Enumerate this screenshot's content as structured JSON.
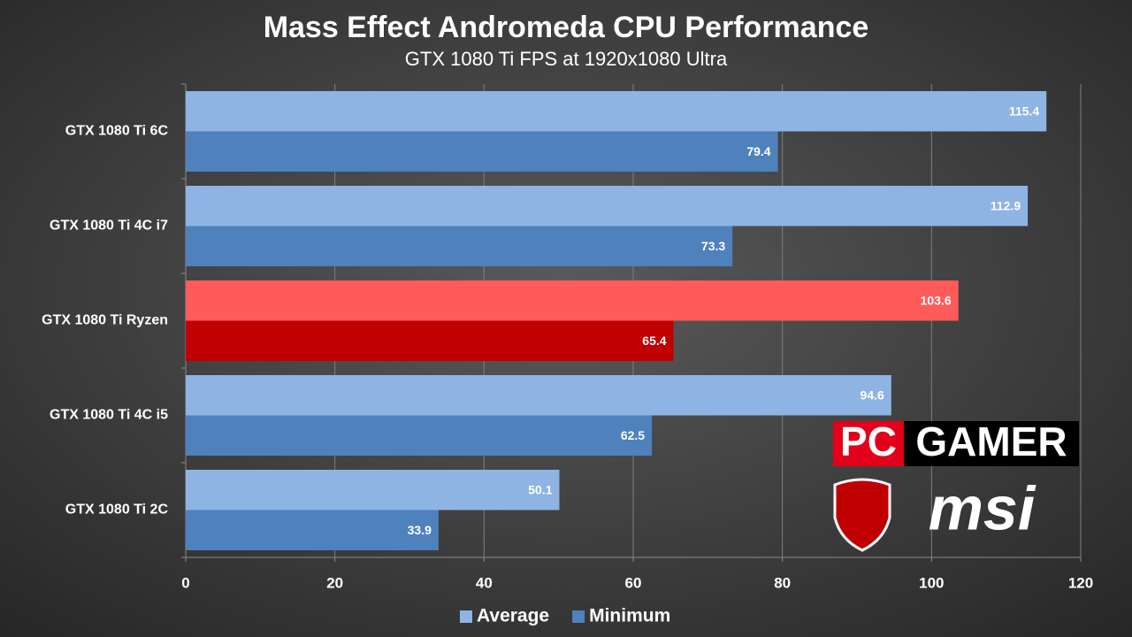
{
  "chart_data": {
    "type": "hbar",
    "title": "Mass Effect Andromeda CPU Performance",
    "subtitle": "GTX 1080 Ti FPS at 1920x1080 Ultra",
    "categories": [
      "GTX 1080 Ti 6C",
      "GTX 1080 Ti 4C i7",
      "GTX 1080 Ti Ryzen",
      "GTX 1080 Ti 4C i5",
      "GTX 1080 Ti 2C"
    ],
    "series": [
      {
        "name": "Average",
        "color": "#8eb4e3",
        "colors": [
          "#8eb4e3",
          "#8eb4e3",
          "#ff5b5b",
          "#8eb4e3",
          "#8eb4e3"
        ],
        "values": [
          115.4,
          112.9,
          103.6,
          94.6,
          50.1
        ]
      },
      {
        "name": "Minimum",
        "color": "#4f81bd",
        "colors": [
          "#4f81bd",
          "#4f81bd",
          "#c00000",
          "#4f81bd",
          "#4f81bd"
        ],
        "values": [
          79.4,
          73.3,
          65.4,
          62.5,
          33.9
        ]
      }
    ],
    "xlim": [
      0,
      120
    ],
    "xticks": [
      0,
      20,
      40,
      60,
      80,
      100,
      120
    ],
    "grid": true,
    "legend": "bottom",
    "annotations": [
      "PC",
      "GAMER",
      "msi"
    ]
  }
}
